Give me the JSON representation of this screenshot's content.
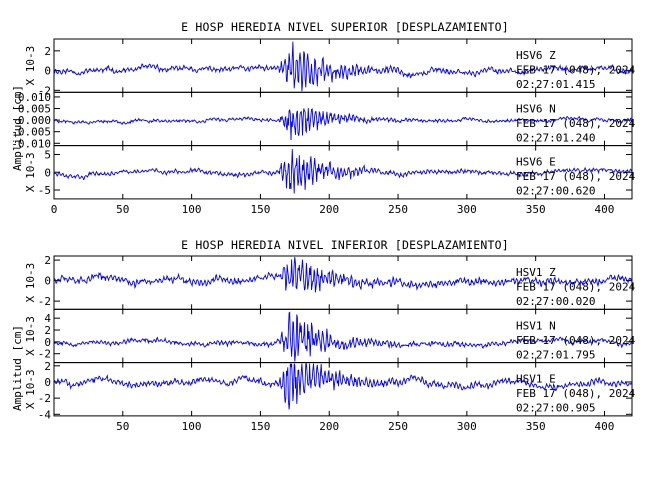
{
  "chart_data": [
    {
      "type": "line",
      "title": "E HOSP HEREDIA NIVEL SUPERIOR [DESPLAZAMIENTO]",
      "ylabel": "Amplitud [cm]",
      "xlim": [
        0,
        420
      ],
      "x_ticks": [
        "0",
        "50",
        "100",
        "150",
        "200",
        "250",
        "300",
        "350",
        "400"
      ],
      "panels": [
        {
          "ylabel": "X 10-3",
          "ylim": [
            -2.2,
            3.2
          ],
          "y_ticks": [
            "2",
            "0",
            "-2"
          ],
          "annotation": [
            "HSV6  Z",
            "FEB 17 (048), 2024",
            "02:27:01.415"
          ],
          "series": {
            "peak": 2.9,
            "noise": 0.35,
            "event_start": 163,
            "event_peak": 172,
            "seed": 11
          }
        },
        {
          "ylabel": "",
          "ylim": [
            -0.011,
            0.012
          ],
          "y_ticks": [
            "0.010",
            "0.005",
            "0.000",
            "-0.005",
            "-0.010"
          ],
          "annotation": [
            "HSV6  N",
            "FEB 17 (048), 2024",
            "02:27:01.240"
          ],
          "series": {
            "peak": 0.0085,
            "noise": 0.0009,
            "event_start": 163,
            "event_peak": 172,
            "seed": 23
          }
        },
        {
          "ylabel": "X 10-3",
          "ylim": [
            -7.5,
            7.5
          ],
          "y_ticks": [
            "5",
            "0",
            "-5"
          ],
          "annotation": [
            "HSV6  E",
            "FEB 17 (048), 2024",
            "02:27:00.620"
          ],
          "series": {
            "peak": 6.8,
            "noise": 0.8,
            "event_start": 163,
            "event_peak": 172,
            "seed": 37
          }
        }
      ]
    },
    {
      "type": "line",
      "title": "E HOSP HEREDIA NIVEL INFERIOR [DESPLAZAMIENTO]",
      "ylabel": "Amplitud [cm]",
      "xlim": [
        0,
        420
      ],
      "x_ticks": [
        "",
        "50",
        "100",
        "150",
        "200",
        "250",
        "300",
        "350",
        "400"
      ],
      "panels": [
        {
          "ylabel": "X 10-3",
          "ylim": [
            -2.8,
            2.4
          ],
          "y_ticks": [
            "2",
            "0",
            "-2"
          ],
          "annotation": [
            "HSV1  Z",
            "FEB 17 (048), 2024",
            "02:27:00.020"
          ],
          "series": {
            "peak": 2.1,
            "noise": 0.45,
            "event_start": 163,
            "event_peak": 174,
            "seed": 51
          }
        },
        {
          "ylabel": "X 10-3",
          "ylim": [
            -3.5,
            5.5
          ],
          "y_ticks": [
            "4",
            "2",
            "0",
            "-2"
          ],
          "annotation": [
            "HSV1  N",
            "FEB 17 (048), 2024",
            "02:27:01.795"
          ],
          "series": {
            "peak": 4.8,
            "noise": 0.5,
            "event_start": 163,
            "event_peak": 172,
            "seed": 67
          }
        },
        {
          "ylabel": "X 10-3",
          "ylim": [
            -4.2,
            2.4
          ],
          "y_ticks": [
            "2",
            "0",
            "-2",
            "-4"
          ],
          "annotation": [
            "HSV1  E",
            "FEB 17 (048), 2024",
            "02:27:00.905"
          ],
          "series": {
            "peak": 3.4,
            "noise": 0.5,
            "event_start": 163,
            "event_peak": 172,
            "seed": 83
          }
        }
      ]
    }
  ]
}
